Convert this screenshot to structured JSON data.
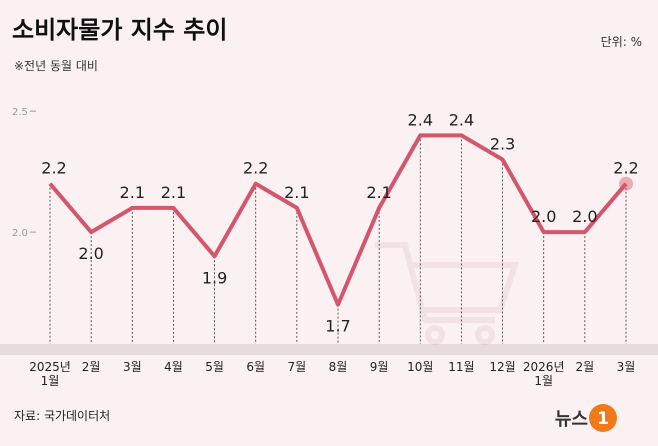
{
  "title": "소비자물가 지수 추이",
  "subtitle": "※전년 동월 대비",
  "unit": "단위: %",
  "source": "자료: 국가데이터처",
  "logo": {
    "text": "뉴스",
    "badge": "1"
  },
  "chart_data": {
    "type": "line",
    "categories": [
      "2025년\n1월",
      "2월",
      "3월",
      "4월",
      "5월",
      "6월",
      "7월",
      "8월",
      "9월",
      "10월",
      "11월",
      "12월",
      "2026년\n1월",
      "2월",
      "3월"
    ],
    "values": [
      2.2,
      2.0,
      2.1,
      2.1,
      1.9,
      2.2,
      2.1,
      1.7,
      2.1,
      2.4,
      2.4,
      2.3,
      2.0,
      2.0,
      2.2
    ],
    "value_labels": [
      "2.2",
      "2.0",
      "2.1",
      "2.1",
      "1.9",
      "2.2",
      "2.1",
      "1.7",
      "2.1",
      "2.4",
      "2.4",
      "2.3",
      "2.0",
      "2.0",
      "2.2"
    ],
    "color": "#d4566b",
    "ylim": [
      1.5,
      2.6
    ],
    "yticks": [
      {
        "value": 2,
        "label": "2.0"
      },
      {
        "value": 2.5,
        "label": "2.5"
      }
    ]
  }
}
